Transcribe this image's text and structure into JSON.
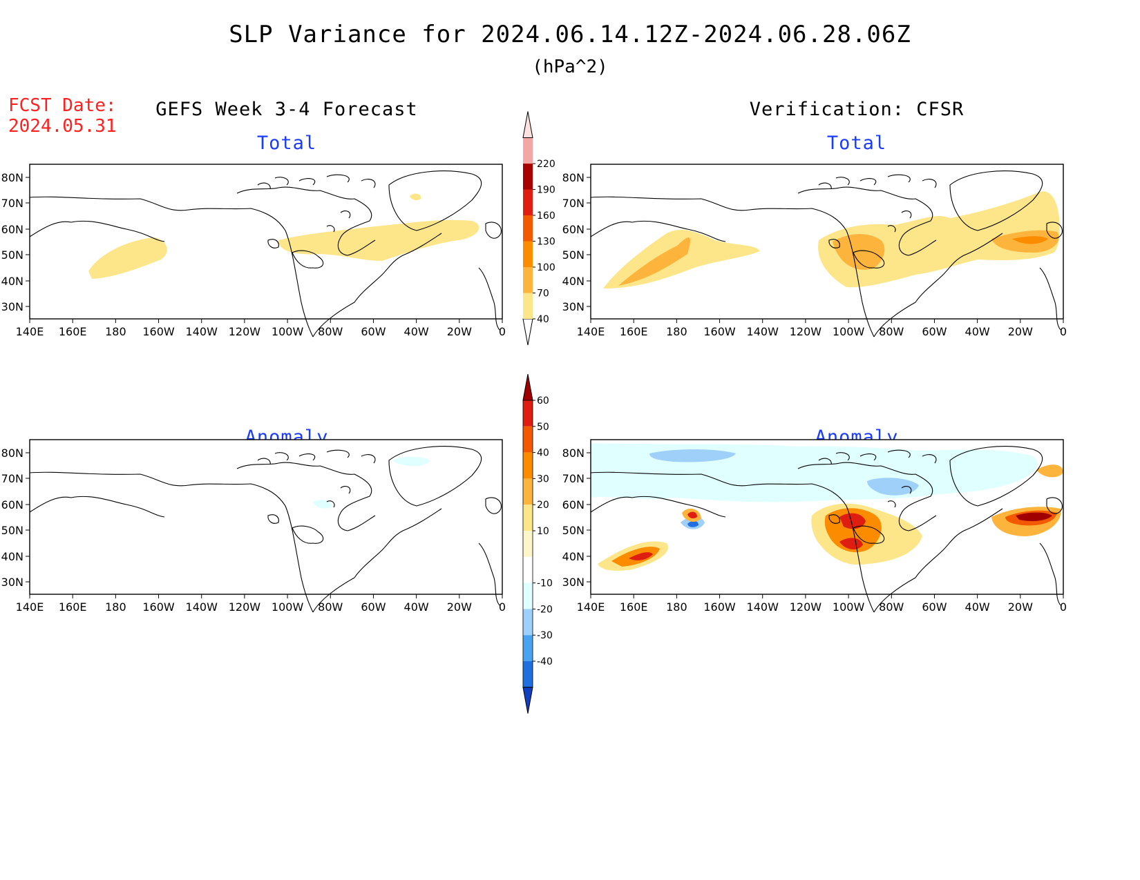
{
  "header": {
    "title": "SLP Variance for 2024.06.14.12Z-2024.06.28.06Z",
    "units": "(hPa^2)",
    "fcst_line1": "FCST Date:",
    "fcst_line2": "2024.05.31",
    "left_heading": "GEFS Week 3-4 Forecast",
    "right_heading": "Verification: CFSR"
  },
  "panels": {
    "top_left_title": "Total",
    "top_right_title": "Total",
    "bottom_left_title": "Anomaly",
    "bottom_right_title": "Anomaly"
  },
  "axes": {
    "lat_labels": [
      "80N",
      "70N",
      "60N",
      "50N",
      "40N",
      "30N"
    ],
    "lon_labels": [
      "140E",
      "160E",
      "180",
      "160W",
      "140W",
      "120W",
      "100W",
      "80W",
      "60W",
      "40W",
      "20W",
      "0"
    ]
  },
  "colorbars": {
    "total": {
      "levels": [
        "40",
        "70",
        "100",
        "130",
        "160",
        "190",
        "220"
      ],
      "colors": [
        "#fde68a",
        "#fdb43c",
        "#fb8c00",
        "#f35a00",
        "#de1e10",
        "#a80000",
        "#f4a6a6",
        "#fde0e0"
      ]
    },
    "anomaly": {
      "levels": [
        "60",
        "50",
        "40",
        "30",
        "20",
        "10",
        "-10",
        "-20",
        "-30",
        "-40"
      ],
      "colors": [
        "#a00000",
        "#de1e10",
        "#f35a00",
        "#fb8c00",
        "#fdb43c",
        "#fde68a",
        "#fdf6c8",
        "#ffffff",
        "#e0ffff",
        "#9fd0fa",
        "#4aa3f0",
        "#1f6fe0",
        "#1040c0"
      ]
    }
  }
}
